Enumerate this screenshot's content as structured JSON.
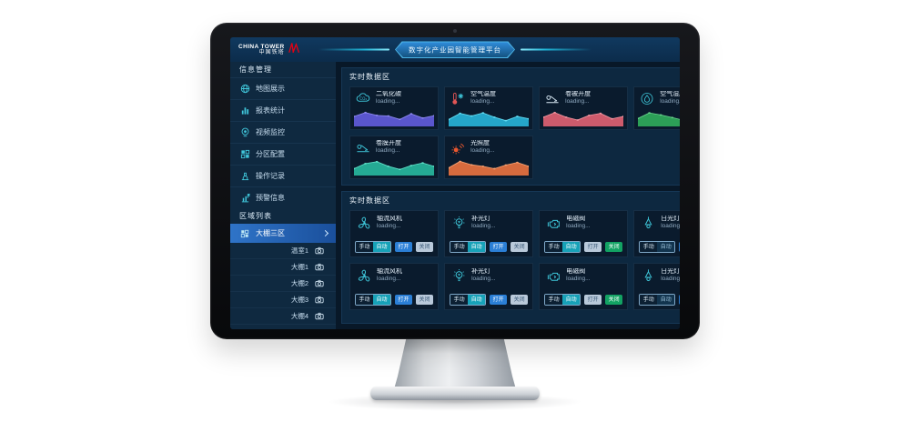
{
  "header": {
    "logo_line1": "CHINA TOWER",
    "logo_line2": "中国铁塔",
    "title": "数字化产业园智能管理平台"
  },
  "sidebar": {
    "section_info": "信息管理",
    "section_regions": "区域列表",
    "menu": [
      {
        "label": "地图展示",
        "icon": "globe-icon"
      },
      {
        "label": "报表统计",
        "icon": "bar-chart-icon"
      },
      {
        "label": "视频监控",
        "icon": "webcam-icon"
      },
      {
        "label": "分区配置",
        "icon": "grid-icon"
      },
      {
        "label": "操作记录",
        "icon": "stamp-icon"
      },
      {
        "label": "预警信息",
        "icon": "alert-chart-icon"
      }
    ],
    "selected_region": "大棚三区",
    "regions": [
      "温室1",
      "大棚1",
      "大棚2",
      "大棚3",
      "大棚4"
    ]
  },
  "panels": {
    "realtime1": {
      "title": "实时数据区"
    },
    "realtime2": {
      "title": "实时数据区"
    }
  },
  "chart_cards": [
    {
      "title": "二氧化碳",
      "status": "loading...",
      "icon": "co2-cloud-icon",
      "color": "#5f5ad6",
      "line": "#8d88f0",
      "points": [
        0.55,
        0.8,
        0.62,
        0.58,
        0.36,
        0.72,
        0.45,
        0.6
      ]
    },
    {
      "title": "空气温度",
      "status": "loading...",
      "icon": "thermometer-icon",
      "color": "#27aed2",
      "line": "#62dcf2",
      "points": [
        0.35,
        0.75,
        0.58,
        0.78,
        0.5,
        0.28,
        0.55,
        0.4
      ]
    },
    {
      "title": "卷被开度",
      "status": "loading...",
      "icon": "roller-blind-icon",
      "color": "#d95f70",
      "line": "#ef95a0",
      "points": [
        0.5,
        0.8,
        0.5,
        0.32,
        0.62,
        0.75,
        0.4,
        0.55
      ]
    },
    {
      "title": "空气湿度",
      "status": "loading...",
      "icon": "droplet-icon",
      "color": "#2ea65a",
      "line": "#67d38c",
      "points": [
        0.42,
        0.78,
        0.65,
        0.48,
        0.3,
        0.68,
        0.45,
        0.55
      ]
    },
    {
      "title": "卷膜开度",
      "status": "loading...",
      "icon": "roller-film-icon",
      "color": "#27b29a",
      "line": "#5fe0c8",
      "points": [
        0.35,
        0.68,
        0.8,
        0.5,
        0.3,
        0.55,
        0.72,
        0.5
      ]
    },
    {
      "title": "光照度",
      "status": "loading...",
      "icon": "sun-rays-icon",
      "color": "#e2703f",
      "line": "#f5a071",
      "points": [
        0.4,
        0.82,
        0.6,
        0.5,
        0.35,
        0.58,
        0.75,
        0.5
      ]
    }
  ],
  "device_cards": [
    {
      "title": "轴流风机",
      "status": "loading...",
      "icon": "fan-icon",
      "mode": "auto",
      "switch": "open"
    },
    {
      "title": "补光灯",
      "status": "loading...",
      "icon": "bulb-icon",
      "mode": "auto",
      "switch": "open"
    },
    {
      "title": "电磁阀",
      "status": "loading...",
      "icon": "valve-icon",
      "mode": "auto",
      "switch": "close"
    },
    {
      "title": "日光灯",
      "status": "loading...",
      "icon": "pendant-lamp-icon",
      "mode": "off",
      "switch": "open"
    },
    {
      "title": "轴流风机",
      "status": "loading...",
      "icon": "fan-icon",
      "mode": "auto",
      "switch": "open"
    },
    {
      "title": "补光灯",
      "status": "loading...",
      "icon": "bulb-icon",
      "mode": "auto",
      "switch": "open"
    },
    {
      "title": "电磁阀",
      "status": "loading...",
      "icon": "valve-icon",
      "mode": "auto",
      "switch": "close"
    },
    {
      "title": "日光灯",
      "status": "loading...",
      "icon": "pendant-lamp-icon",
      "mode": "off",
      "switch": "open"
    }
  ],
  "buttons": {
    "manual": "手动",
    "auto": "自动",
    "open": "打开",
    "close": "关闭"
  },
  "colors": {
    "auto_active": "#17a2b8",
    "open_active": "#2b7fd6",
    "close_active": "#12a263",
    "switch_inactive": "#b9c9da",
    "accent_teal": "#3fc9dc",
    "brand_red": "#e60012"
  }
}
